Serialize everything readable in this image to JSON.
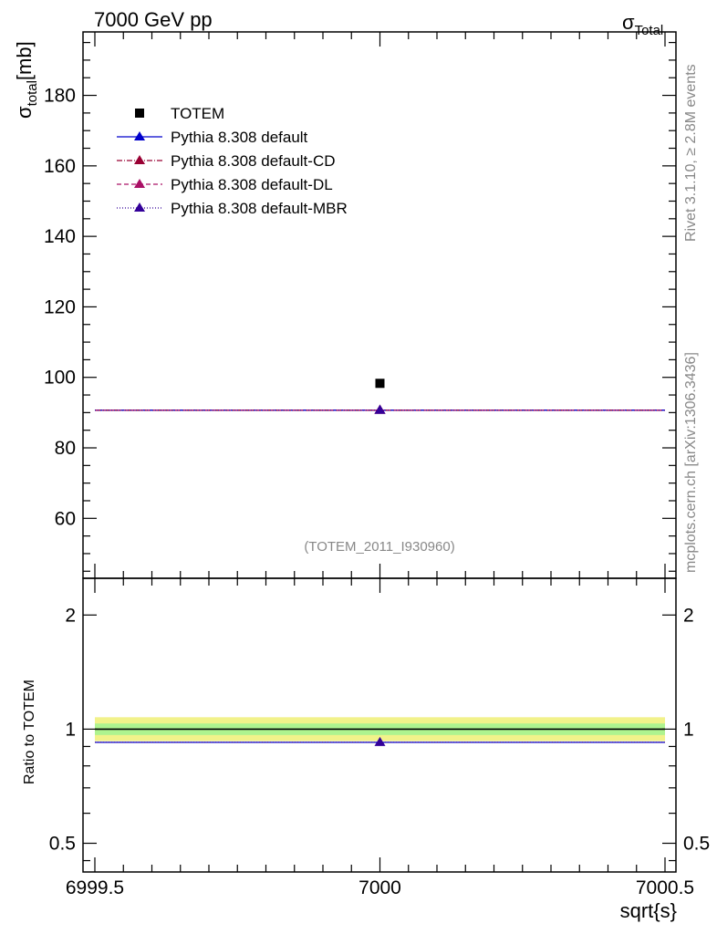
{
  "header": {
    "energy_label": "7000 GeV pp",
    "observable_sym": "σ",
    "observable_sub": "Total"
  },
  "side_labels": {
    "rivet": "Rivet 3.1.10, ≥ 2.8M events",
    "mcplots": "mcplots.cern.ch [arXiv:1306.3436]"
  },
  "chart_data": [
    {
      "type": "scatter",
      "panel": "main",
      "ylabel_sym": "σ",
      "ylabel_sub": "total",
      "ylabel_unit": "[mb]",
      "xlim": [
        6999.5,
        7000.5
      ],
      "ylim": [
        43,
        198
      ],
      "yticks": [
        60,
        80,
        100,
        120,
        140,
        160,
        180
      ],
      "ytick_labels": [
        "60",
        "80",
        "100",
        "120",
        "140",
        "160",
        "180"
      ],
      "analysis_tag": "(TOTEM_2011_I930960)",
      "legend_position": "top-left",
      "series": [
        {
          "name": "TOTEM",
          "kind": "data",
          "color": "#000000",
          "marker": "square",
          "x": [
            7000
          ],
          "y": [
            98.3
          ]
        },
        {
          "name": "Pythia 8.308 default",
          "kind": "mc",
          "color": "#0000cc",
          "dash": "solid",
          "marker": "triangle",
          "x": [
            7000
          ],
          "y": [
            90.7
          ]
        },
        {
          "name": "Pythia 8.308 default-CD",
          "kind": "mc",
          "color": "#990033",
          "dash": "6,2,1,2",
          "marker": "triangle",
          "x": [
            7000
          ],
          "y": [
            90.7
          ]
        },
        {
          "name": "Pythia 8.308 default-DL",
          "kind": "mc",
          "color": "#aa1166",
          "dash": "5,3",
          "marker": "triangle",
          "x": [
            7000
          ],
          "y": [
            90.7
          ]
        },
        {
          "name": "Pythia 8.308 default-MBR",
          "kind": "mc",
          "color": "#330099",
          "dash": "1,2",
          "marker": "triangle",
          "x": [
            7000
          ],
          "y": [
            90.7
          ]
        }
      ]
    },
    {
      "type": "line",
      "panel": "ratio",
      "ylabel": "Ratio to TOTEM",
      "xlabel": "sqrt{s}",
      "xlim": [
        6999.5,
        7000.5
      ],
      "ylim": [
        0.42,
        2.5
      ],
      "log_y": true,
      "xticks": [
        6999.5,
        7000,
        7000.5
      ],
      "xtick_labels": [
        "6999.5",
        "7000",
        "7000.5"
      ],
      "yticks": [
        0.5,
        1,
        2
      ],
      "ytick_labels": [
        "0.5",
        "1",
        "2"
      ],
      "bands": [
        {
          "color": "#f2f28a",
          "low": 0.93,
          "high": 1.075
        },
        {
          "color": "#aef38f",
          "low": 0.965,
          "high": 1.035
        }
      ],
      "series": [
        {
          "name": "TOTEM",
          "color": "#000000",
          "x": [
            7000
          ],
          "y": [
            1.0
          ]
        },
        {
          "name": "Pythia 8.308 default",
          "color": "#0000cc",
          "x": [
            7000
          ],
          "y": [
            0.923
          ]
        },
        {
          "name": "Pythia 8.308 default-MBR",
          "color": "#330099",
          "x": [
            7000
          ],
          "y": [
            0.923
          ]
        }
      ]
    }
  ]
}
